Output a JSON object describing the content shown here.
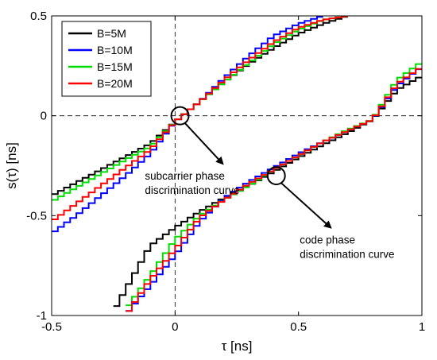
{
  "chart_data": {
    "type": "line",
    "xlabel": "τ [ns]",
    "ylabel": "s(τ) [ns]",
    "xlim": [
      -0.5,
      1
    ],
    "ylim": [
      -1,
      0.5
    ],
    "x_ticks": [
      -0.5,
      0,
      0.5,
      1
    ],
    "y_ticks": [
      -1,
      -0.5,
      0,
      0.5
    ],
    "x_tick_labels": [
      "-0.5",
      "0",
      "0.5",
      "1"
    ],
    "y_tick_labels": [
      "-1",
      "-0.5",
      "0",
      "0.5"
    ],
    "grid": false,
    "legend_position": "top-left",
    "reference_lines": [
      {
        "orientation": "horizontal",
        "value": 0,
        "style": "dashed"
      },
      {
        "orientation": "vertical",
        "value": 0,
        "style": "dashed"
      }
    ],
    "series": [
      {
        "name": "B=5M",
        "color": "#000000",
        "subcarrier_curve": {
          "x": [
            -0.5,
            -0.4,
            -0.3,
            -0.2,
            -0.1,
            0.0,
            0.1,
            0.2,
            0.3,
            0.4,
            0.5,
            0.6,
            0.7
          ],
          "y": [
            -0.4,
            -0.335,
            -0.27,
            -0.205,
            -0.14,
            -0.03,
            0.07,
            0.17,
            0.26,
            0.34,
            0.41,
            0.46,
            0.5
          ]
        },
        "code_curve": {
          "x": [
            -0.25,
            -0.1,
            0.0,
            0.1,
            0.2,
            0.3,
            0.4,
            0.5,
            0.6,
            0.7,
            0.8,
            0.9,
            1.0
          ],
          "y": [
            -0.98,
            -0.65,
            -0.56,
            -0.48,
            -0.41,
            -0.35,
            -0.28,
            -0.21,
            -0.145,
            -0.085,
            -0.02,
            0.13,
            0.2
          ]
        }
      },
      {
        "name": "B=10M",
        "color": "#0000ff",
        "subcarrier_curve": {
          "x": [
            -0.5,
            -0.4,
            -0.3,
            -0.2,
            -0.1,
            0.0,
            0.1,
            0.2,
            0.3,
            0.4,
            0.5,
            0.6
          ],
          "y": [
            -0.59,
            -0.5,
            -0.4,
            -0.3,
            -0.19,
            -0.03,
            0.07,
            0.19,
            0.3,
            0.4,
            0.46,
            0.5
          ]
        },
        "code_curve": {
          "x": [
            -0.2,
            -0.1,
            0.0,
            0.1,
            0.2,
            0.3,
            0.4,
            0.5,
            0.6,
            0.7,
            0.8,
            0.9,
            1.0
          ],
          "y": [
            -0.995,
            -0.85,
            -0.7,
            -0.53,
            -0.41,
            -0.33,
            -0.26,
            -0.19,
            -0.13,
            -0.075,
            -0.02,
            0.15,
            0.245
          ]
        }
      },
      {
        "name": "B=15M",
        "color": "#00dd00",
        "subcarrier_curve": {
          "x": [
            -0.5,
            -0.4,
            -0.3,
            -0.2,
            -0.1,
            0.0,
            0.1,
            0.2,
            0.3,
            0.4,
            0.5,
            0.6,
            0.7
          ],
          "y": [
            -0.43,
            -0.36,
            -0.29,
            -0.22,
            -0.155,
            -0.03,
            0.07,
            0.17,
            0.265,
            0.36,
            0.43,
            0.48,
            0.5
          ]
        },
        "code_curve": {
          "x": [
            -0.2,
            -0.1,
            0.0,
            0.1,
            0.2,
            0.3,
            0.4,
            0.5,
            0.6,
            0.7,
            0.8,
            0.9,
            1.0
          ],
          "y": [
            -0.97,
            -0.8,
            -0.62,
            -0.5,
            -0.42,
            -0.35,
            -0.27,
            -0.2,
            -0.13,
            -0.07,
            -0.02,
            0.18,
            0.27
          ]
        }
      },
      {
        "name": "B=20M",
        "color": "#ff0000",
        "subcarrier_curve": {
          "x": [
            -0.5,
            -0.4,
            -0.3,
            -0.2,
            -0.1,
            0.0,
            0.1,
            0.2,
            0.3,
            0.4,
            0.5,
            0.6,
            0.7
          ],
          "y": [
            -0.53,
            -0.44,
            -0.35,
            -0.26,
            -0.17,
            -0.03,
            0.07,
            0.18,
            0.28,
            0.37,
            0.44,
            0.48,
            0.5
          ]
        },
        "code_curve": {
          "x": [
            -0.2,
            -0.1,
            0.0,
            0.1,
            0.2,
            0.3,
            0.4,
            0.5,
            0.6,
            0.7,
            0.8,
            0.9,
            1.0
          ],
          "y": [
            -1.0,
            -0.82,
            -0.67,
            -0.51,
            -0.42,
            -0.34,
            -0.27,
            -0.2,
            -0.13,
            -0.075,
            -0.02,
            0.16,
            0.245
          ]
        }
      }
    ],
    "annotations": [
      {
        "lines": [
          "subcarrier phase",
          "discrimination curve"
        ],
        "marker_at": [
          0.02,
          0.0
        ],
        "text_at": [
          0.0,
          -0.28
        ]
      },
      {
        "lines": [
          "code phase",
          "discrimination curve"
        ],
        "marker_at": [
          0.41,
          -0.3
        ],
        "text_at": [
          0.55,
          -0.6
        ]
      }
    ]
  }
}
